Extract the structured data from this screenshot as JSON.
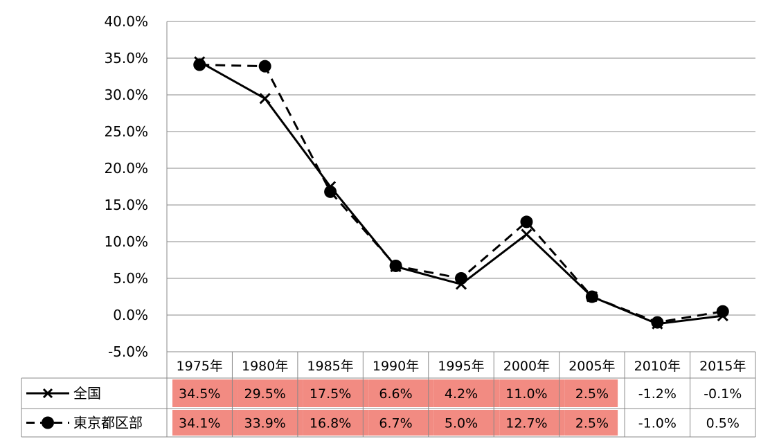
{
  "chart_data": {
    "type": "line",
    "categories": [
      "1975年",
      "1980年",
      "1985年",
      "1990年",
      "1995年",
      "2000年",
      "2005年",
      "2010年",
      "2015年"
    ],
    "ylim": [
      -5,
      40
    ],
    "yticks": [
      "-5.0%",
      "0.0%",
      "5.0%",
      "10.0%",
      "15.0%",
      "20.0%",
      "25.0%",
      "30.0%",
      "35.0%",
      "40.0%"
    ],
    "grid": true,
    "series": [
      {
        "name": "全国",
        "style": "solid",
        "marker": "x",
        "values": [
          34.5,
          29.5,
          17.5,
          6.6,
          4.2,
          11.0,
          2.5,
          -1.2,
          -0.1
        ],
        "labels": [
          "34.5%",
          "29.5%",
          "17.5%",
          "6.6%",
          "4.2%",
          "11.0%",
          "2.5%",
          "-1.2%",
          "-0.1%"
        ]
      },
      {
        "name": "東京都区部",
        "style": "dashed",
        "marker": "circle",
        "values": [
          34.1,
          33.9,
          16.8,
          6.7,
          5.0,
          12.7,
          2.5,
          -1.0,
          0.5
        ],
        "labels": [
          "34.1%",
          "33.9%",
          "16.8%",
          "6.7%",
          "5.0%",
          "12.7%",
          "2.5%",
          "-1.0%",
          "0.5%"
        ]
      }
    ],
    "data_table": true,
    "highlighted_columns": 7
  },
  "colors": {
    "line": "#000000",
    "grid": "#888888",
    "highlight": "#f28b82"
  }
}
